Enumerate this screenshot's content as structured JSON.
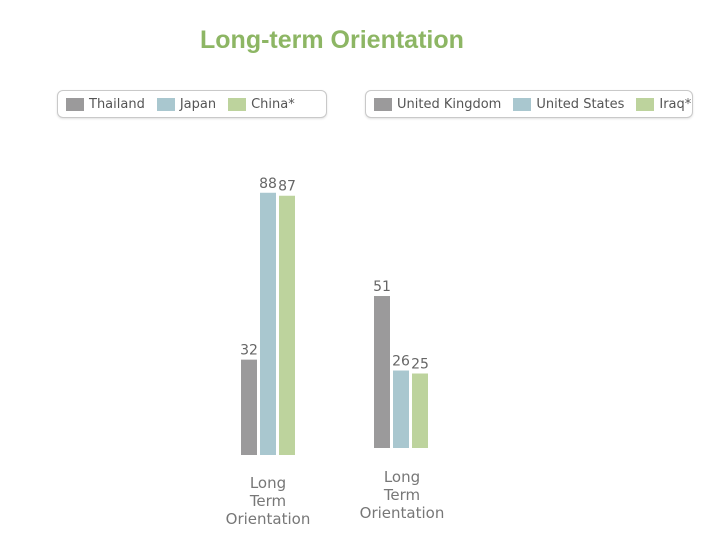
{
  "title": "Long-term Orientation",
  "colors": {
    "gray": "#9b9a9b",
    "blue": "#a9c7cf",
    "green": "#bdd39d",
    "title": "#8db664"
  },
  "chart_data": [
    {
      "type": "bar",
      "categories": [
        "Long Term Orientation"
      ],
      "category_label_lines": [
        "Long",
        "Term",
        "Orientation"
      ],
      "series": [
        {
          "name": "Thailand",
          "values": [
            32
          ]
        },
        {
          "name": "Japan",
          "values": [
            88
          ]
        },
        {
          "name": "China*",
          "values": [
            87
          ]
        }
      ],
      "legend": "top",
      "grid": false
    },
    {
      "type": "bar",
      "categories": [
        "Long Term Orientation"
      ],
      "category_label_lines": [
        "Long",
        "Term",
        "Orientation"
      ],
      "series": [
        {
          "name": "United Kingdom",
          "values": [
            51
          ]
        },
        {
          "name": "United States",
          "values": [
            26
          ]
        },
        {
          "name": "Iraq*",
          "values": [
            25
          ]
        }
      ],
      "legend": "top",
      "grid": false
    }
  ]
}
